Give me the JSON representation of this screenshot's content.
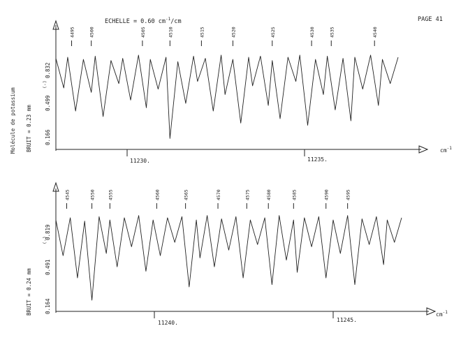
{
  "header": {
    "scale_label": "ECHELLE = 0.60 cm",
    "scale_exponent": "-1",
    "scale_unit_tail": "/cm",
    "page_label": "PAGE 41"
  },
  "panels": [
    {
      "molecule_label": "Molécule de potassium",
      "noise_label": "BRUIT =  0.23 mm",
      "log_label": "(-)",
      "y_ticks": [
        "0.832",
        "0.499",
        "0.166"
      ],
      "x_ticks": [
        "11230.",
        "11235."
      ],
      "x_unit": "cm",
      "x_unit_exp": "-1",
      "line_numbers": [
        "4495",
        "4500",
        "4505",
        "4510",
        "4515",
        "4520",
        "4525",
        "4530",
        "4535",
        "4540"
      ]
    },
    {
      "molecule_label": "",
      "noise_label": "BRUIT =  0.24 mm",
      "log_label": "(-)",
      "y_ticks": [
        "0.819",
        "0.491",
        "0.164"
      ],
      "x_ticks": [
        "11240.",
        "11245."
      ],
      "x_unit": "cm",
      "x_unit_exp": "-1",
      "line_numbers": [
        "4545",
        "4550",
        "4555",
        "4560",
        "4565",
        "4570",
        "4575",
        "4580",
        "4585",
        "4590",
        "4595"
      ]
    }
  ],
  "chart_data": [
    {
      "type": "line",
      "title": "",
      "xlabel": "cm-1",
      "ylabel": "",
      "x_ticks": [
        11230,
        11235
      ],
      "xlim": [
        11228.5,
        11237.2
      ],
      "y_ticks": [
        0.166,
        0.499,
        0.832
      ],
      "ylim": [
        0.0,
        0.98
      ],
      "noise": "0.23 mm",
      "series": [
        {
          "x": [
            11228.5,
            11228.7,
            11228.8,
            11229.0,
            11229.2,
            11229.4,
            11229.5,
            11229.7,
            11229.9,
            11230.1,
            11230.2,
            11230.4,
            11230.6,
            11230.8,
            11230.9,
            11231.1,
            11231.3,
            11231.4,
            11231.6,
            11231.8,
            11232.0,
            11232.1,
            11232.3,
            11232.5,
            11232.7,
            11232.8,
            11233.0,
            11233.2,
            11233.4,
            11233.5,
            11233.7,
            11233.9,
            11234.0,
            11234.2,
            11234.4,
            11234.6,
            11234.7,
            11234.9,
            11235.1,
            11235.3,
            11235.4,
            11235.6,
            11235.8,
            11236.0,
            11236.1,
            11236.3,
            11236.5,
            11236.7,
            11236.8,
            11237.0,
            11237.2
          ],
          "values": [
            0.83,
            0.56,
            0.84,
            0.35,
            0.82,
            0.52,
            0.85,
            0.3,
            0.81,
            0.6,
            0.83,
            0.45,
            0.86,
            0.38,
            0.82,
            0.55,
            0.84,
            0.1,
            0.8,
            0.42,
            0.85,
            0.62,
            0.83,
            0.35,
            0.86,
            0.5,
            0.82,
            0.24,
            0.84,
            0.58,
            0.85,
            0.4,
            0.81,
            0.28,
            0.84,
            0.62,
            0.86,
            0.22,
            0.82,
            0.5,
            0.85,
            0.36,
            0.83,
            0.26,
            0.84,
            0.55,
            0.86,
            0.4,
            0.82,
            0.6,
            0.84
          ]
        }
      ],
      "line_positions": [
        {
          "label": "4495",
          "x": 11228.9
        },
        {
          "label": "4500",
          "x": 11229.4
        },
        {
          "label": "4505",
          "x": 11230.7
        },
        {
          "label": "4510",
          "x": 11231.4
        },
        {
          "label": "4515",
          "x": 11232.2
        },
        {
          "label": "4520",
          "x": 11233.0
        },
        {
          "label": "4525",
          "x": 11234.0
        },
        {
          "label": "4530",
          "x": 11235.0
        },
        {
          "label": "4535",
          "x": 11235.5
        },
        {
          "label": "4540",
          "x": 11236.6
        }
      ]
    },
    {
      "type": "line",
      "title": "",
      "xlabel": "cm-1",
      "ylabel": "",
      "x_ticks": [
        11240,
        11245
      ],
      "xlim": [
        11237.2,
        11246.8
      ],
      "y_ticks": [
        0.164,
        0.491,
        0.819
      ],
      "ylim": [
        0.0,
        0.99
      ],
      "noise": "0.24 mm",
      "series": [
        {
          "x": [
            11237.2,
            11237.4,
            11237.6,
            11237.8,
            11238.0,
            11238.2,
            11238.4,
            11238.6,
            11238.7,
            11238.9,
            11239.1,
            11239.3,
            11239.5,
            11239.7,
            11239.9,
            11240.1,
            11240.3,
            11240.5,
            11240.7,
            11240.9,
            11241.1,
            11241.2,
            11241.4,
            11241.6,
            11241.8,
            11242.0,
            11242.2,
            11242.4,
            11242.6,
            11242.8,
            11243.0,
            11243.2,
            11243.4,
            11243.6,
            11243.8,
            11243.9,
            11244.1,
            11244.3,
            11244.5,
            11244.7,
            11244.9,
            11245.1,
            11245.3,
            11245.5,
            11245.7,
            11245.9,
            11246.1,
            11246.3,
            11246.4,
            11246.6,
            11246.8
          ],
          "values": [
            0.82,
            0.5,
            0.84,
            0.3,
            0.81,
            0.1,
            0.85,
            0.52,
            0.82,
            0.4,
            0.84,
            0.58,
            0.86,
            0.36,
            0.82,
            0.5,
            0.84,
            0.62,
            0.85,
            0.22,
            0.82,
            0.48,
            0.86,
            0.4,
            0.83,
            0.55,
            0.85,
            0.3,
            0.82,
            0.6,
            0.84,
            0.24,
            0.86,
            0.46,
            0.82,
            0.35,
            0.84,
            0.58,
            0.85,
            0.3,
            0.82,
            0.52,
            0.86,
            0.24,
            0.83,
            0.6,
            0.85,
            0.42,
            0.82,
            0.62,
            0.84
          ]
        }
      ],
      "line_positions": [
        {
          "label": "4545",
          "x": 11237.5
        },
        {
          "label": "4550",
          "x": 11238.2
        },
        {
          "label": "4555",
          "x": 11238.7
        },
        {
          "label": "4560",
          "x": 11240.0
        },
        {
          "label": "4565",
          "x": 11240.8
        },
        {
          "label": "4570",
          "x": 11241.7
        },
        {
          "label": "4575",
          "x": 11242.5
        },
        {
          "label": "4580",
          "x": 11243.1
        },
        {
          "label": "4585",
          "x": 11243.8
        },
        {
          "label": "4590",
          "x": 11244.7
        },
        {
          "label": "4595",
          "x": 11245.3
        }
      ]
    }
  ]
}
